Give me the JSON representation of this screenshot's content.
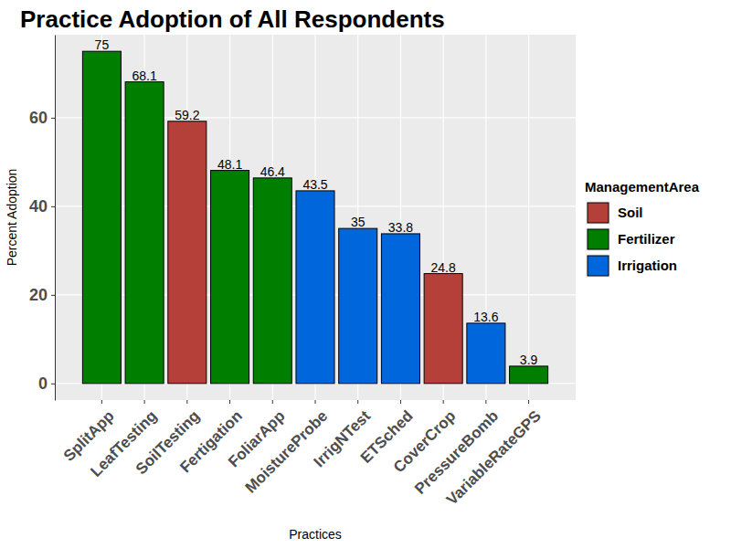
{
  "chart_data": {
    "type": "bar",
    "title": "Practice Adoption of All Respondents",
    "x_label": "Practices",
    "y_label": "Percent Adoption",
    "legend_title": "ManagementArea",
    "categories": [
      "SplitApp",
      "LeafTesting",
      "SoilTesting",
      "Fertigation",
      "FoliarApp",
      "MoistureProbe",
      "IrrigNTest",
      "ETSched",
      "CoverCrop",
      "PressureBomb",
      "VariableRateGPS"
    ],
    "series": [
      {
        "name": "Soil",
        "color": "#B5403A",
        "values": [
          null,
          null,
          59.2,
          null,
          null,
          null,
          null,
          null,
          24.8,
          null,
          null
        ]
      },
      {
        "name": "Fertilizer",
        "color": "#007E00",
        "values": [
          75,
          68.1,
          null,
          48.1,
          46.4,
          null,
          null,
          null,
          null,
          null,
          3.9
        ]
      },
      {
        "name": "Irrigation",
        "color": "#0066DB",
        "values": [
          null,
          null,
          null,
          null,
          null,
          43.5,
          35,
          33.8,
          null,
          13.6,
          null
        ]
      }
    ],
    "ylim": [
      -3.75,
      78.75
    ],
    "yticks": [
      0,
      20,
      40,
      60
    ],
    "grid": true,
    "data_labels": true,
    "legend": "right"
  }
}
